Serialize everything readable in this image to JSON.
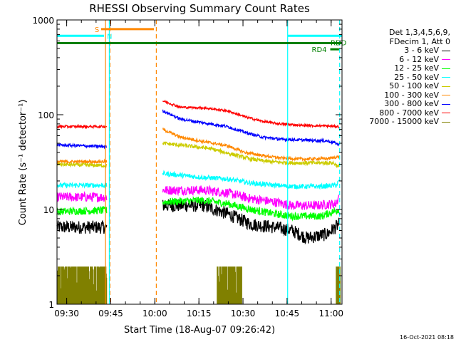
{
  "chart_data": {
    "type": "line",
    "title": "RHESSI Observing Summary Count Rates",
    "xlabel": "Start Time (18-Aug-07 09:26:42)",
    "ylabel": "Count Rate (s⁻¹ detector⁻¹)",
    "yscale": "log",
    "ylim": [
      1,
      1000
    ],
    "xlim_minutes": [
      0,
      97
    ],
    "x_ticks": [
      {
        "label": "09:30",
        "minute": 3.3
      },
      {
        "label": "09:45",
        "minute": 18.3
      },
      {
        "label": "10:00",
        "minute": 33.3
      },
      {
        "label": "10:15",
        "minute": 48.3
      },
      {
        "label": "10:30",
        "minute": 63.3
      },
      {
        "label": "10:45",
        "minute": 78.3
      },
      {
        "label": "11:00",
        "minute": 93.3
      }
    ],
    "y_ticks": [
      {
        "label": "1",
        "value": 1
      },
      {
        "label": "10",
        "value": 10
      },
      {
        "label": "100",
        "value": 100
      },
      {
        "label": "1000",
        "value": 1000
      }
    ],
    "legend": {
      "header": [
        "Det 1,3,4,5,6,9,",
        "FDecim 1, Att 0"
      ],
      "placement": "right"
    },
    "series": [
      {
        "name": "3 - 6 keV",
        "color": "#000000",
        "noise": 0.07,
        "points": [
          [
            0,
            6.5
          ],
          [
            17,
            6.5
          ],
          [
            null,
            null
          ],
          [
            36,
            11
          ],
          [
            50,
            11
          ],
          [
            58,
            9
          ],
          [
            66,
            7
          ],
          [
            74,
            6.5
          ],
          [
            80,
            6
          ],
          [
            85,
            5
          ],
          [
            92,
            5.5
          ],
          [
            96,
            7
          ]
        ]
      },
      {
        "name": "6 - 12 keV",
        "color": "#ff00ff",
        "noise": 0.05,
        "points": [
          [
            0,
            13.5
          ],
          [
            17,
            13.5
          ],
          [
            null,
            null
          ],
          [
            36,
            16
          ],
          [
            50,
            16
          ],
          [
            58,
            15
          ],
          [
            66,
            13
          ],
          [
            74,
            12
          ],
          [
            80,
            11
          ],
          [
            88,
            11
          ],
          [
            95,
            11.5
          ],
          [
            96,
            14
          ]
        ]
      },
      {
        "name": "12 - 25 keV",
        "color": "#00ff00",
        "noise": 0.04,
        "points": [
          [
            0,
            9.5
          ],
          [
            17,
            9.8
          ],
          [
            null,
            null
          ],
          [
            36,
            12
          ],
          [
            50,
            12.5
          ],
          [
            58,
            11.5
          ],
          [
            66,
            10
          ],
          [
            74,
            9
          ],
          [
            80,
            8.5
          ],
          [
            90,
            8.5
          ],
          [
            96,
            10
          ]
        ]
      },
      {
        "name": "25 - 50 keV",
        "color": "#00ffff",
        "noise": 0.025,
        "points": [
          [
            0,
            18
          ],
          [
            17,
            18
          ],
          [
            null,
            null
          ],
          [
            36,
            24
          ],
          [
            48,
            22
          ],
          [
            58,
            21
          ],
          [
            66,
            19
          ],
          [
            74,
            18
          ],
          [
            80,
            17.5
          ],
          [
            90,
            17.5
          ],
          [
            95,
            18
          ],
          [
            96,
            20
          ]
        ]
      },
      {
        "name": "50 - 100 keV",
        "color": "#cccc00",
        "noise": 0.02,
        "points": [
          [
            0,
            30
          ],
          [
            17,
            29
          ],
          [
            null,
            null
          ],
          [
            36,
            50
          ],
          [
            44,
            47
          ],
          [
            52,
            44
          ],
          [
            60,
            38
          ],
          [
            66,
            34
          ],
          [
            72,
            32
          ],
          [
            80,
            31
          ],
          [
            88,
            31
          ],
          [
            94,
            31
          ],
          [
            96,
            28
          ]
        ]
      },
      {
        "name": "100 - 300 keV",
        "color": "#ff8800",
        "noise": 0.015,
        "points": [
          [
            0,
            32
          ],
          [
            17,
            32
          ],
          [
            null,
            null
          ],
          [
            36,
            70
          ],
          [
            42,
            58
          ],
          [
            50,
            52
          ],
          [
            58,
            47
          ],
          [
            64,
            40
          ],
          [
            70,
            37
          ],
          [
            76,
            35
          ],
          [
            84,
            34
          ],
          [
            92,
            34.5
          ],
          [
            96,
            36
          ]
        ]
      },
      {
        "name": "300 - 800 keV",
        "color": "#0000ff",
        "noise": 0.015,
        "points": [
          [
            0,
            48
          ],
          [
            17,
            46
          ],
          [
            null,
            null
          ],
          [
            36,
            110
          ],
          [
            42,
            90
          ],
          [
            50,
            82
          ],
          [
            58,
            75
          ],
          [
            64,
            65
          ],
          [
            70,
            58
          ],
          [
            76,
            55
          ],
          [
            84,
            54
          ],
          [
            92,
            53
          ],
          [
            95,
            50
          ],
          [
            96,
            48
          ]
        ]
      },
      {
        "name": "800 - 7000 keV",
        "color": "#ff0000",
        "noise": 0.012,
        "points": [
          [
            0,
            75
          ],
          [
            17,
            75
          ],
          [
            null,
            null
          ],
          [
            36,
            140
          ],
          [
            42,
            120
          ],
          [
            50,
            118
          ],
          [
            58,
            110
          ],
          [
            64,
            95
          ],
          [
            70,
            85
          ],
          [
            76,
            80
          ],
          [
            84,
            77
          ],
          [
            92,
            76
          ],
          [
            96,
            75
          ]
        ]
      },
      {
        "name": "7000 - 15000 keV",
        "color": "#808000",
        "noise": 0,
        "points": []
      }
    ],
    "attenuator_bursts": [
      {
        "from": 0,
        "to": 17
      },
      {
        "from": 54.5,
        "to": 63
      },
      {
        "from": 95,
        "to": 96.5
      }
    ],
    "state_bars": [
      {
        "label": "S",
        "color": "#ff8800",
        "from": 15,
        "to": 33,
        "level": 800
      },
      {
        "label": "N",
        "color": "#00ffff",
        "from": 0,
        "to": 16,
        "level": 680
      },
      {
        "label": "N",
        "color": "#00ffff",
        "from": 78.5,
        "to": 97,
        "level": 680
      },
      {
        "label": "RDD",
        "color": "#008000",
        "from": 0,
        "to": 97,
        "level": 570
      },
      {
        "label": "RD4",
        "color": "#008000",
        "from": 93,
        "to": 96,
        "level": 490
      }
    ],
    "vertical_lines": [
      {
        "minute": 16.5,
        "color": "#ff8800",
        "style": "solid"
      },
      {
        "minute": 18,
        "color": "#ff8800",
        "style": "dashed"
      },
      {
        "minute": 33.8,
        "color": "#ff8800",
        "style": "dashed"
      },
      {
        "minute": 17.8,
        "color": "#00ffff",
        "style": "solid"
      },
      {
        "minute": 78.5,
        "color": "#00ffff",
        "style": "solid"
      },
      {
        "minute": 96.2,
        "color": "#00ffff",
        "style": "dashed"
      }
    ]
  },
  "footer": {
    "timestamp": "16-Oct-2021 08:18"
  }
}
